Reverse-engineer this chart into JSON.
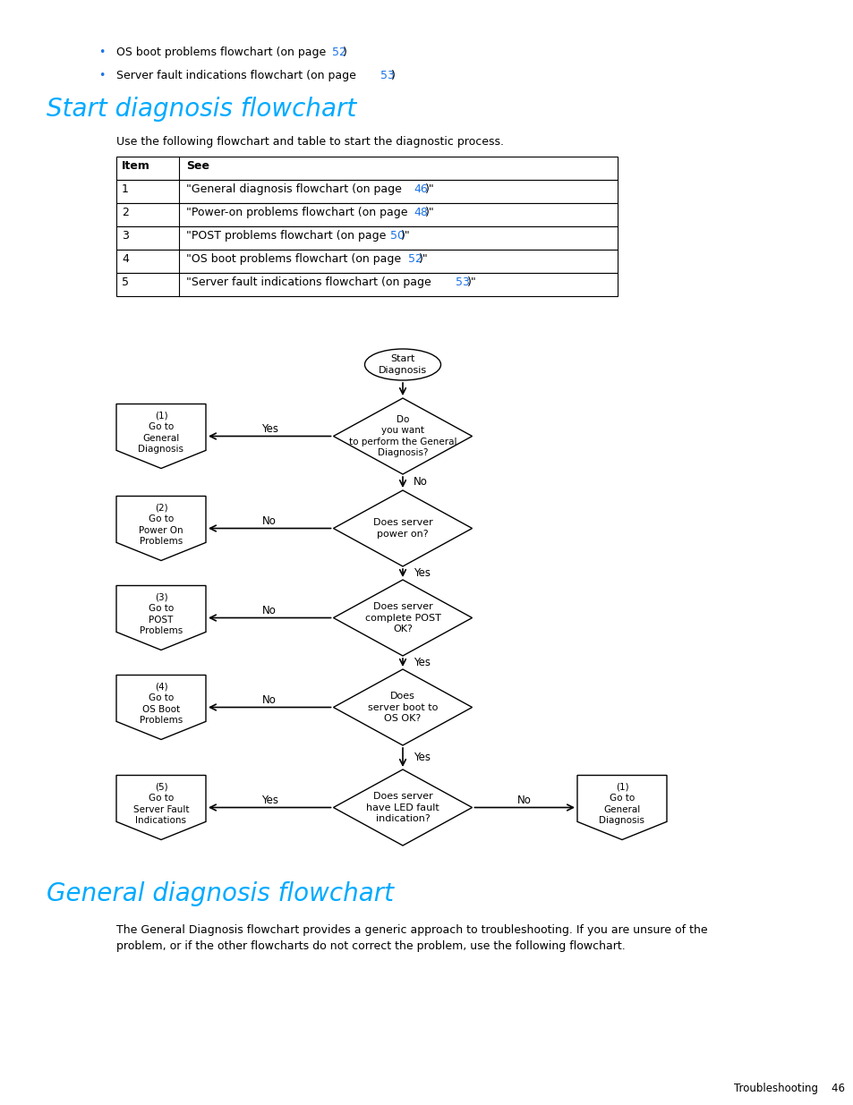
{
  "bg_color": "#ffffff",
  "bullet_color": "#1a73e8",
  "heading_color": "#00aaff",
  "text_color": "#000000",
  "link_color": "#1a73e8",
  "section1_title": "Start diagnosis flowchart",
  "section1_intro": "Use the following flowchart and table to start the diagnostic process.",
  "table_col1_header": "Item",
  "table_col2_header": "See",
  "table_rows": [
    {
      "item": "1",
      "prefix": "\"General diagnosis flowchart (on page ",
      "link": "46",
      "suffix": ")\""
    },
    {
      "item": "2",
      "prefix": "\"Power-on problems flowchart (on page ",
      "link": "48",
      "suffix": ")\""
    },
    {
      "item": "3",
      "prefix": "\"POST problems flowchart (on page ",
      "link": "50",
      "suffix": ")\""
    },
    {
      "item": "4",
      "prefix": "\"OS boot problems flowchart (on page ",
      "link": "52",
      "suffix": ")\""
    },
    {
      "item": "5",
      "prefix": "\"Server fault indications flowchart (on page ",
      "link": "53",
      "suffix": ")\""
    }
  ],
  "section2_title": "General diagnosis flowchart",
  "section2_text1": "The General Diagnosis flowchart provides a generic approach to troubleshooting. If you are unsure of the",
  "section2_text2": "problem, or if the other flowcharts do not correct the problem, use the following flowchart.",
  "footer": "Troubleshooting    46",
  "bullet1_text": "OS boot problems flowchart (on page ",
  "bullet1_link": "52",
  "bullet1_suffix": ")",
  "bullet2_text": "Server fault indications flowchart (on page ",
  "bullet2_link": "53",
  "bullet2_suffix": ")",
  "start_label": "Start\nDiagnosis",
  "diamonds": [
    "Do\nyou want\nto perform the General\nDiagnosis?",
    "Does server\npower on?",
    "Does server\ncomplete POST\nOK?",
    "Does\nserver boot to\nOS OK?",
    "Does server\nhave LED fault\nindication?"
  ],
  "left_boxes": [
    "(1)\nGo to\nGeneral\nDiagnosis",
    "(2)\nGo to\nPower On\nProblems",
    "(3)\nGo to\nPOST\nProblems",
    "(4)\nGo to\nOS Boot\nProblems",
    "(5)\nGo to\nServer Fault\nIndications"
  ],
  "right_box": "(1)\nGo to\nGeneral\nDiagnosis",
  "arrow_labels": {
    "d1_left": "Yes",
    "d1_down": "No",
    "d2_left": "No",
    "d2_down": "Yes",
    "d3_left": "No",
    "d3_down": "Yes",
    "d4_left": "No",
    "d4_down": "Yes",
    "d5_left": "Yes",
    "d5_right": "No"
  }
}
